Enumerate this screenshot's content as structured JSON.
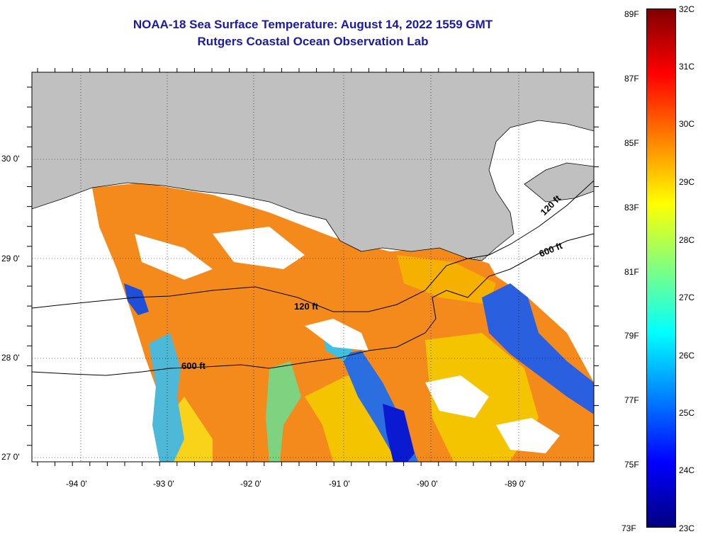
{
  "title": {
    "line1": "NOAA-18 Sea Surface Temperature:  August 14, 2022 1559 GMT",
    "line2": "Rutgers Coastal Ocean Observation Lab"
  },
  "map": {
    "lon_ticks": [
      "-94 0'",
      "-93 0'",
      "-92 0'",
      "-91 0'",
      "-90 0'",
      "-89 0'"
    ],
    "lat_ticks": [
      "30 0'",
      "29 0'",
      "28 0'",
      "27 0'"
    ],
    "contour_labels": [
      {
        "id": "c120-west",
        "text": "120 ft"
      },
      {
        "id": "c600-west",
        "text": "600 ft"
      },
      {
        "id": "c120-east",
        "text": "120 ft"
      },
      {
        "id": "c600-east",
        "text": "600 ft"
      }
    ],
    "colors": {
      "land": "#c0c0c0",
      "cloud": "#ffffff",
      "contour": "#000000"
    }
  },
  "colorbar": {
    "fahrenheit": [
      "89F",
      "87F",
      "85F",
      "83F",
      "81F",
      "79F",
      "77F",
      "75F",
      "73F"
    ],
    "celsius": [
      "32C",
      "31C",
      "30C",
      "29C",
      "28C",
      "27C",
      "26C",
      "25C",
      "24C",
      "23C"
    ],
    "colors": [
      "#000080",
      "#0000ff",
      "#0080ff",
      "#00ffff",
      "#80ff80",
      "#ffff00",
      "#ff8000",
      "#ff0000",
      "#800000"
    ]
  }
}
